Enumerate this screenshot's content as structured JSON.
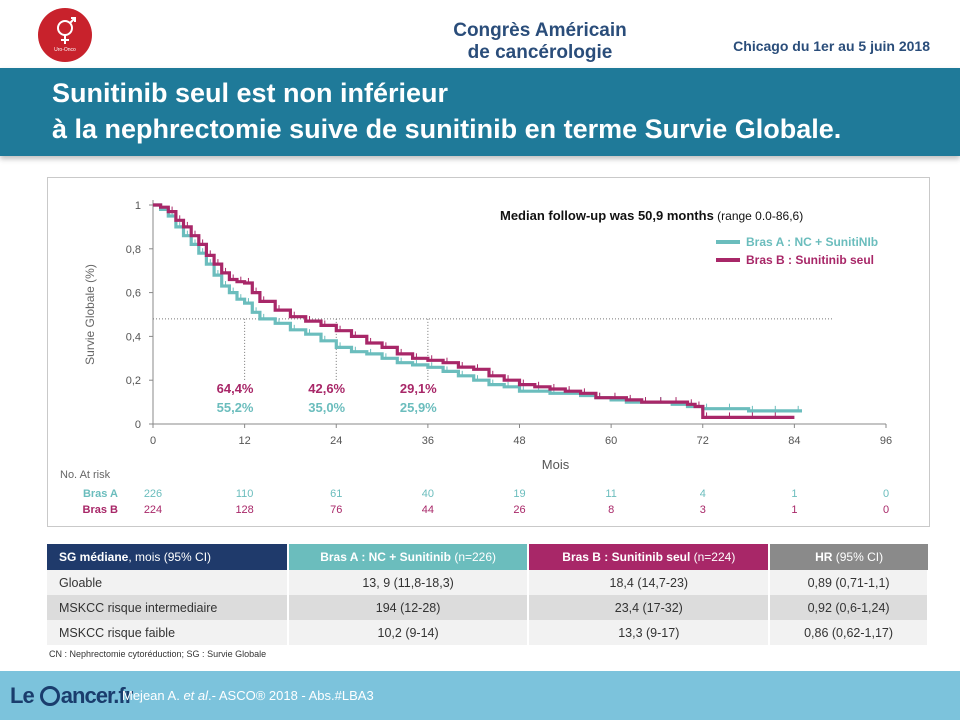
{
  "header": {
    "logo_text": "Uro-Onco",
    "congress_line1": "Congrès Américain",
    "congress_line2": "de cancérologie",
    "dates": "Chicago du 1er au 5 juin 2018"
  },
  "title": {
    "line1": "Sunitinib seul est non inférieur",
    "line2": "à la nephrectomie suive de sunitinib en terme Survie Globale."
  },
  "chart_data": {
    "type": "line",
    "title": "",
    "xlabel": "Mois",
    "ylabel": "Survie Globale (%)",
    "xlim": [
      0,
      96
    ],
    "ylim": [
      0,
      1
    ],
    "x_ticks": [
      0,
      12,
      24,
      36,
      48,
      60,
      72,
      84,
      96
    ],
    "y_ticks": [
      0,
      0.2,
      0.4,
      0.6,
      0.8,
      1
    ],
    "y_tick_labels": [
      "0",
      "0,2",
      "0,4",
      "0,6",
      "0,8",
      "1"
    ],
    "median_line_y": 0.48,
    "annotation": {
      "bold": "Median follow-up was 50,9 months",
      "normal": " (range 0.0-86,6)"
    },
    "series": [
      {
        "name": "Bras A : NC + SunitiNIb",
        "color": "#6bbdbd",
        "x": [
          0,
          1,
          2,
          3,
          4,
          5,
          6,
          7,
          8,
          9,
          10,
          11,
          12,
          13,
          14,
          16,
          18,
          20,
          22,
          24,
          26,
          28,
          30,
          32,
          34,
          36,
          38,
          40,
          42,
          44,
          46,
          48,
          50,
          52,
          54,
          56,
          58,
          60,
          62,
          64,
          66,
          68,
          70,
          72,
          75,
          78,
          81,
          84,
          85
        ],
        "y": [
          1,
          0.98,
          0.95,
          0.9,
          0.86,
          0.82,
          0.78,
          0.73,
          0.68,
          0.63,
          0.6,
          0.57,
          0.552,
          0.51,
          0.48,
          0.46,
          0.43,
          0.41,
          0.38,
          0.35,
          0.33,
          0.32,
          0.3,
          0.28,
          0.27,
          0.259,
          0.24,
          0.22,
          0.2,
          0.18,
          0.17,
          0.15,
          0.15,
          0.14,
          0.14,
          0.13,
          0.12,
          0.11,
          0.1,
          0.1,
          0.1,
          0.09,
          0.08,
          0.07,
          0.07,
          0.06,
          0.06,
          0.06,
          0.06
        ]
      },
      {
        "name": "Bras B : Sunitinib seul",
        "color": "#a82768",
        "x": [
          0,
          1,
          2,
          3,
          4,
          5,
          6,
          7,
          8,
          9,
          10,
          11,
          12,
          13,
          14,
          16,
          18,
          20,
          22,
          24,
          26,
          28,
          30,
          32,
          34,
          36,
          38,
          40,
          42,
          44,
          46,
          48,
          50,
          52,
          54,
          56,
          58,
          60,
          62,
          64,
          66,
          68,
          70,
          71,
          72,
          75,
          78,
          81,
          84
        ],
        "y": [
          1,
          0.99,
          0.97,
          0.93,
          0.9,
          0.86,
          0.82,
          0.77,
          0.73,
          0.69,
          0.66,
          0.65,
          0.644,
          0.6,
          0.56,
          0.52,
          0.49,
          0.47,
          0.45,
          0.426,
          0.4,
          0.37,
          0.35,
          0.32,
          0.3,
          0.291,
          0.28,
          0.26,
          0.25,
          0.22,
          0.2,
          0.18,
          0.17,
          0.16,
          0.15,
          0.14,
          0.12,
          0.12,
          0.11,
          0.1,
          0.1,
          0.1,
          0.09,
          0.08,
          0.03,
          0.03,
          0.03,
          0.03,
          0.03
        ]
      }
    ],
    "survival_labels": [
      {
        "x": 12,
        "b": "64,4%",
        "a": "55,2%"
      },
      {
        "x": 24,
        "b": "42,6%",
        "a": "35,0%"
      },
      {
        "x": 36,
        "b": "29,1%",
        "a": "25,9%"
      }
    ],
    "risk_table": {
      "title": "No. At risk",
      "times": [
        0,
        12,
        24,
        36,
        48,
        60,
        72,
        84,
        96
      ],
      "rows": [
        {
          "label": "Bras A",
          "values": [
            "226",
            "110",
            "61",
            "40",
            "19",
            "11",
            "4",
            "1",
            "0"
          ]
        },
        {
          "label": "Bras B",
          "values": [
            "224",
            "128",
            "76",
            "44",
            "26",
            "8",
            "3",
            "1",
            "0"
          ]
        }
      ]
    }
  },
  "table": {
    "headers": [
      {
        "main": "SG médiane",
        "small": ", mois (95% CI)"
      },
      {
        "main": "Bras A : NC + Sunitinib",
        "small": " (n=226)"
      },
      {
        "main": "Bras B : Sunitinib seul",
        "small": " (n=224)"
      },
      {
        "main": "HR",
        "small": " (95% CI)"
      }
    ],
    "rows": [
      [
        "Gloable",
        "13, 9 (11,8-18,3)",
        "18,4 (14,7-23)",
        "0,89 (0,71-1,1)"
      ],
      [
        "MSKCC risque intermediaire",
        "194 (12-28)",
        "23,4 (17-32)",
        "0,92 (0,6-1,24)"
      ],
      [
        "MSKCC risque faible",
        "10,2 (9-14)",
        "13,3 (9-17)",
        "0,86 (0,62-1,17)"
      ]
    ],
    "footnote": "CN : Nephrectomie cytoréduction; SG : Survie Globale"
  },
  "footer": {
    "brand_prefix": "Le ",
    "brand_suffix": "ancer.fr",
    "citation_author": "Mejean A. ",
    "citation_etal": "et al",
    "citation_rest": ".- ASCO® 2018 - Abs.#LBA3"
  }
}
